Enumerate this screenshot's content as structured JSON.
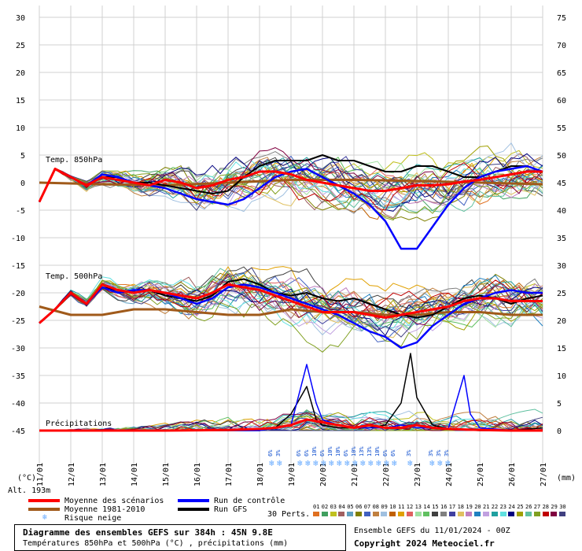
{
  "colors": {
    "background": "#ffffff",
    "grid": "#d0d0d0",
    "mean_scenarios": "#ff0000",
    "mean_1981_2010": "#a05a1a",
    "control_run": "#0000ff",
    "gfs_run": "#000000",
    "snow_icon": "#66aaff"
  },
  "chart_data": {
    "type": "line",
    "title": "Diagramme des ensembles GEFS sur 384h : 45N 9.8E",
    "subtitle": "Températures 850hPa et 500hPa (°C) , précipitations (mm)",
    "left_axis_unit": "(°C)",
    "right_axis_unit": "(mm)",
    "left_ticks": [
      30,
      25,
      20,
      15,
      10,
      5,
      0,
      -5,
      -10,
      -15,
      -20,
      -25,
      -30,
      -35,
      -40,
      -45
    ],
    "right_ticks": [
      75,
      70,
      65,
      60,
      55,
      50,
      45,
      40,
      35,
      30,
      25,
      20,
      15,
      10,
      5,
      0
    ],
    "left_ylim": [
      -45,
      30
    ],
    "right_ylim": [
      0,
      75
    ],
    "grid": true,
    "x_labels": [
      "11/01",
      "12/01",
      "13/01",
      "14/01",
      "15/01",
      "16/01",
      "17/01",
      "18/01",
      "19/01",
      "20/01",
      "21/01",
      "22/01",
      "23/01",
      "24/01",
      "25/01",
      "26/01",
      "27/01"
    ],
    "panel_labels": [
      "Temp. 850hPa",
      "Temp. 500hPa",
      "Précipitations"
    ],
    "temp850": {
      "mean": [
        [
          0,
          -3.5
        ],
        [
          0.5,
          2.5
        ],
        [
          1,
          1
        ],
        [
          1.5,
          -0.5
        ],
        [
          2,
          1
        ],
        [
          2.5,
          0.5
        ],
        [
          3,
          0
        ],
        [
          3.5,
          -0.5
        ],
        [
          4,
          0.5
        ],
        [
          4.5,
          0
        ],
        [
          5,
          -1
        ],
        [
          5.5,
          -0.5
        ],
        [
          6,
          0.5
        ],
        [
          6.5,
          1
        ],
        [
          7,
          2
        ],
        [
          7.5,
          2
        ],
        [
          8,
          1.5
        ],
        [
          8.5,
          0.5
        ],
        [
          9,
          0
        ],
        [
          9.5,
          -0.5
        ],
        [
          10,
          -1
        ],
        [
          10.5,
          -1.5
        ],
        [
          11,
          -1.5
        ],
        [
          11.5,
          -1
        ],
        [
          12,
          -0.5
        ],
        [
          12.5,
          -0.5
        ],
        [
          13,
          -0.3
        ],
        [
          13.5,
          0.2
        ],
        [
          14,
          0.5
        ],
        [
          14.5,
          1
        ],
        [
          15,
          1.5
        ],
        [
          15.5,
          2
        ],
        [
          16,
          2
        ]
      ],
      "climatology": [
        [
          0,
          0
        ],
        [
          2,
          -0.3
        ],
        [
          4,
          -0.5
        ],
        [
          6,
          0
        ],
        [
          8,
          0.5
        ],
        [
          10,
          0.5
        ],
        [
          12,
          0.3
        ],
        [
          14,
          0
        ],
        [
          16,
          -0.3
        ]
      ],
      "control": [
        [
          0,
          -3.5
        ],
        [
          0.5,
          2.5
        ],
        [
          1,
          1
        ],
        [
          1.5,
          -0.5
        ],
        [
          2,
          1.5
        ],
        [
          2.5,
          1
        ],
        [
          3,
          0
        ],
        [
          3.5,
          -0.5
        ],
        [
          4,
          -1
        ],
        [
          4.5,
          -2
        ],
        [
          5,
          -3
        ],
        [
          5.5,
          -3.5
        ],
        [
          6,
          -4
        ],
        [
          6.5,
          -3
        ],
        [
          7,
          -1
        ],
        [
          7.5,
          1
        ],
        [
          8,
          2
        ],
        [
          8.5,
          2.5
        ],
        [
          9,
          1
        ],
        [
          9.5,
          -0.5
        ],
        [
          10,
          -2
        ],
        [
          10.5,
          -4
        ],
        [
          11,
          -7
        ],
        [
          11.5,
          -12
        ],
        [
          12,
          -12
        ],
        [
          12.5,
          -8
        ],
        [
          13,
          -4
        ],
        [
          13.5,
          -1
        ],
        [
          14,
          1
        ],
        [
          14.5,
          2
        ],
        [
          15,
          2.5
        ],
        [
          15.5,
          3
        ],
        [
          16,
          2
        ]
      ],
      "gfs": [
        [
          0,
          -3.5
        ],
        [
          0.5,
          2.5
        ],
        [
          1,
          1
        ],
        [
          1.5,
          -0.5
        ],
        [
          2,
          1
        ],
        [
          2.5,
          1
        ],
        [
          3,
          0
        ],
        [
          3.5,
          0
        ],
        [
          4,
          -0.5
        ],
        [
          4.5,
          -1
        ],
        [
          5,
          -1.5
        ],
        [
          5.5,
          -2
        ],
        [
          6,
          -1.5
        ],
        [
          6.5,
          1
        ],
        [
          7,
          3
        ],
        [
          7.5,
          4
        ],
        [
          8,
          4
        ],
        [
          8.5,
          4
        ],
        [
          9,
          5
        ],
        [
          9.5,
          4
        ],
        [
          10,
          4
        ],
        [
          10.5,
          3
        ],
        [
          11,
          2
        ],
        [
          11.5,
          2
        ],
        [
          12,
          3
        ],
        [
          12.5,
          3
        ],
        [
          13,
          2
        ],
        [
          13.5,
          1
        ],
        [
          14,
          1
        ],
        [
          14.5,
          2
        ],
        [
          15,
          3
        ],
        [
          15.5,
          3
        ],
        [
          16,
          2
        ]
      ]
    },
    "temp500": {
      "mean": [
        [
          0,
          -25.5
        ],
        [
          0.5,
          -23
        ],
        [
          1,
          -20
        ],
        [
          1.5,
          -22
        ],
        [
          2,
          -18.5
        ],
        [
          2.5,
          -19.5
        ],
        [
          3,
          -20
        ],
        [
          3.5,
          -19.5
        ],
        [
          4,
          -20
        ],
        [
          4.5,
          -20.5
        ],
        [
          5,
          -21
        ],
        [
          5.5,
          -20
        ],
        [
          6,
          -18.5
        ],
        [
          6.5,
          -19
        ],
        [
          7,
          -19.5
        ],
        [
          7.5,
          -20.5
        ],
        [
          8,
          -21.5
        ],
        [
          8.5,
          -22.5
        ],
        [
          9,
          -23.5
        ],
        [
          9.5,
          -23.5
        ],
        [
          10,
          -23.5
        ],
        [
          10.5,
          -24
        ],
        [
          11,
          -24.5
        ],
        [
          11.5,
          -24
        ],
        [
          12,
          -23.5
        ],
        [
          12.5,
          -23
        ],
        [
          13,
          -22.5
        ],
        [
          13.5,
          -21.5
        ],
        [
          14,
          -21
        ],
        [
          14.5,
          -21
        ],
        [
          15,
          -21.5
        ],
        [
          15.5,
          -21.5
        ],
        [
          16,
          -21.5
        ]
      ],
      "climatology": [
        [
          0,
          -22.5
        ],
        [
          1,
          -24
        ],
        [
          2,
          -24
        ],
        [
          3,
          -23
        ],
        [
          4,
          -23
        ],
        [
          5,
          -23.5
        ],
        [
          6,
          -24
        ],
        [
          7,
          -24
        ],
        [
          8,
          -23
        ],
        [
          9,
          -23.5
        ],
        [
          10,
          -23.5
        ],
        [
          11,
          -24
        ],
        [
          12,
          -24
        ],
        [
          13,
          -23.5
        ],
        [
          14,
          -23.5
        ],
        [
          15,
          -24
        ],
        [
          16,
          -24
        ]
      ],
      "control": [
        [
          0,
          -25.5
        ],
        [
          0.5,
          -23
        ],
        [
          1,
          -20
        ],
        [
          1.5,
          -22
        ],
        [
          2,
          -19
        ],
        [
          2.5,
          -20
        ],
        [
          3,
          -19.5
        ],
        [
          3.5,
          -19.5
        ],
        [
          4,
          -20
        ],
        [
          4.5,
          -21
        ],
        [
          5,
          -22
        ],
        [
          5.5,
          -21
        ],
        [
          6,
          -19
        ],
        [
          6.5,
          -18.5
        ],
        [
          7,
          -19
        ],
        [
          7.5,
          -20
        ],
        [
          8,
          -21
        ],
        [
          8.5,
          -22
        ],
        [
          9,
          -23
        ],
        [
          9.5,
          -24
        ],
        [
          10,
          -25.5
        ],
        [
          10.5,
          -27
        ],
        [
          11,
          -28
        ],
        [
          11.5,
          -30
        ],
        [
          12,
          -29
        ],
        [
          12.5,
          -26
        ],
        [
          13,
          -24
        ],
        [
          13.5,
          -22
        ],
        [
          14,
          -21
        ],
        [
          14.5,
          -20
        ],
        [
          15,
          -19.5
        ],
        [
          15.5,
          -20
        ],
        [
          16,
          -20
        ]
      ],
      "gfs": [
        [
          0,
          -25.5
        ],
        [
          0.5,
          -23
        ],
        [
          1,
          -20
        ],
        [
          1.5,
          -22
        ],
        [
          2,
          -19
        ],
        [
          2.5,
          -19.5
        ],
        [
          3,
          -20
        ],
        [
          3.5,
          -19.5
        ],
        [
          4,
          -20.5
        ],
        [
          4.5,
          -21
        ],
        [
          5,
          -21.5
        ],
        [
          5.5,
          -20.5
        ],
        [
          6,
          -18
        ],
        [
          6.5,
          -17.5
        ],
        [
          7,
          -18.5
        ],
        [
          7.5,
          -20
        ],
        [
          8,
          -20.5
        ],
        [
          8.5,
          -20
        ],
        [
          9,
          -21
        ],
        [
          9.5,
          -21.5
        ],
        [
          10,
          -21
        ],
        [
          10.5,
          -22
        ],
        [
          11,
          -23
        ],
        [
          11.5,
          -24
        ],
        [
          12,
          -24.5
        ],
        [
          12.5,
          -24
        ],
        [
          13,
          -22.5
        ],
        [
          13.5,
          -21
        ],
        [
          14,
          -20.5
        ],
        [
          14.5,
          -21
        ],
        [
          15,
          -22
        ],
        [
          15.5,
          -21
        ],
        [
          16,
          -20.5
        ]
      ]
    },
    "precip": {
      "mean": [
        [
          0,
          0
        ],
        [
          2,
          0
        ],
        [
          4,
          0
        ],
        [
          6,
          0.1
        ],
        [
          7,
          0.3
        ],
        [
          7.5,
          0.5
        ],
        [
          8,
          1
        ],
        [
          8.5,
          2
        ],
        [
          9,
          1.5
        ],
        [
          9.5,
          1
        ],
        [
          10,
          0.5
        ],
        [
          10.5,
          1
        ],
        [
          11,
          0.5
        ],
        [
          11.5,
          0.5
        ],
        [
          12,
          1
        ],
        [
          12.5,
          0.5
        ],
        [
          13,
          0.3
        ],
        [
          13.5,
          0.2
        ],
        [
          14,
          0.1
        ],
        [
          15,
          0
        ],
        [
          16,
          0
        ]
      ],
      "control": [
        [
          0,
          0
        ],
        [
          7,
          0
        ],
        [
          7.5,
          0.5
        ],
        [
          8,
          1
        ],
        [
          8.5,
          12
        ],
        [
          8.8,
          5
        ],
        [
          9,
          2
        ],
        [
          9.5,
          1
        ],
        [
          10,
          0.5
        ],
        [
          10.5,
          0.5
        ],
        [
          11,
          0.5
        ],
        [
          11.5,
          1
        ],
        [
          12,
          0.5
        ],
        [
          12.5,
          0.5
        ],
        [
          13,
          0.3
        ],
        [
          13.5,
          10
        ],
        [
          13.7,
          3
        ],
        [
          14,
          0.5
        ],
        [
          15,
          0
        ],
        [
          16,
          0
        ]
      ],
      "gfs": [
        [
          0,
          0
        ],
        [
          7,
          0
        ],
        [
          7.5,
          0.5
        ],
        [
          8,
          3
        ],
        [
          8.5,
          8
        ],
        [
          8.8,
          2
        ],
        [
          9,
          1
        ],
        [
          9.5,
          0.5
        ],
        [
          10,
          0.5
        ],
        [
          10.5,
          0.5
        ],
        [
          11,
          1
        ],
        [
          11.5,
          5
        ],
        [
          11.8,
          14
        ],
        [
          12,
          6
        ],
        [
          12.5,
          1
        ],
        [
          13,
          0.3
        ],
        [
          14,
          0
        ],
        [
          15,
          0
        ],
        [
          16,
          0.5
        ]
      ]
    },
    "snow_risk": [
      {
        "day": 7.4,
        "labels": [
          "6%",
          "3%"
        ]
      },
      {
        "day": 8.3,
        "labels": [
          "6%",
          "6%",
          "10%",
          "6%",
          "10%",
          "10%",
          "6%",
          "10%",
          "13%",
          "13%",
          "10%",
          "6%",
          "6%"
        ]
      },
      {
        "day": 11.8,
        "labels": [
          "3%"
        ]
      },
      {
        "day": 12.5,
        "labels": [
          "3%",
          "3%",
          "3%"
        ]
      }
    ]
  },
  "legend": {
    "mean_scenarios": "Moyenne des scénarios",
    "mean_1981_2010": "Moyenne 1981-2010",
    "snow_risk": "Risque neige",
    "control_run": "Run de contrôle",
    "gfs_run": "Run GFS",
    "perturbations_label": "30 Perts.",
    "perturbation_numbers": [
      "01",
      "02",
      "03",
      "04",
      "05",
      "06",
      "07",
      "08",
      "09",
      "10",
      "11",
      "12",
      "13",
      "14",
      "15",
      "16",
      "17",
      "18",
      "19",
      "20",
      "21",
      "22",
      "23",
      "24",
      "25",
      "26",
      "27",
      "28",
      "29",
      "30"
    ],
    "perturbation_colors": [
      "#e07020",
      "#40a060",
      "#c0c020",
      "#a06060",
      "#60a0c0",
      "#808000",
      "#4060c0",
      "#c08040",
      "#a0c0e0",
      "#c06000",
      "#e0a000",
      "#e06060",
      "#a0e0a0",
      "#60c060",
      "#404040",
      "#808080",
      "#4040a0",
      "#e0c060",
      "#c080c0",
      "#2080c0",
      "#c0a0e0",
      "#20a0a0",
      "#60e0e0",
      "#000080",
      "#a0a000",
      "#60c0a0",
      "#80a020",
      "#c00000",
      "#800040",
      "#404080"
    ]
  },
  "footer": {
    "alt_label": "Alt. 193m",
    "run_info": "Ensemble GEFS du 11/01/2024 - 00Z",
    "copyright": "Copyright 2024 Meteociel.fr"
  }
}
